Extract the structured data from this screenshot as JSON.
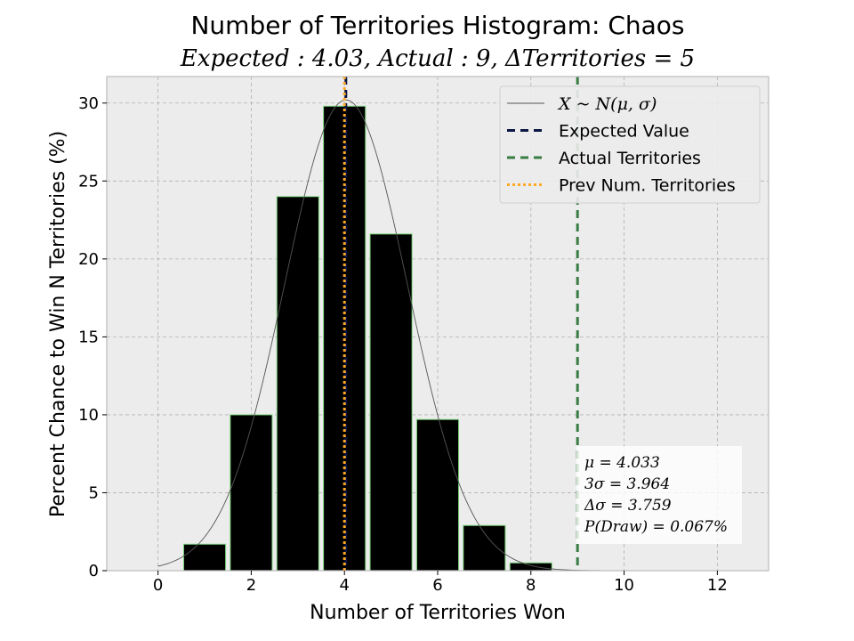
{
  "chart_data": {
    "type": "bar",
    "title": "Number of Territories Histogram: Chaos",
    "subtitle": "Expected : 4.03, Actual : 9, ΔTerritories = 5",
    "xlabel": "Number of Territories Won",
    "ylabel": "Percent Chance to Win N Territories (%)",
    "xlim": [
      -1.1,
      13.1
    ],
    "ylim": [
      0,
      31.7
    ],
    "xticks": [
      0,
      2,
      4,
      6,
      8,
      10,
      12
    ],
    "yticks": [
      0,
      5,
      10,
      15,
      20,
      25,
      30
    ],
    "grid": true,
    "bars": [
      {
        "x": 1,
        "value": 1.7
      },
      {
        "x": 2,
        "value": 10.0
      },
      {
        "x": 3,
        "value": 24.0
      },
      {
        "x": 4,
        "value": 29.8
      },
      {
        "x": 5,
        "value": 21.6
      },
      {
        "x": 6,
        "value": 9.7
      },
      {
        "x": 7,
        "value": 2.9
      },
      {
        "x": 8,
        "value": 0.5
      }
    ],
    "bar_width": 0.9,
    "bar_color": "#000000",
    "bar_edge_color": "#7fd87f",
    "normal_curve": {
      "mu": 4.033,
      "sigma": 1.321,
      "peak": 30.2,
      "x_range": [
        0,
        12.5
      ],
      "color": "#555555"
    },
    "vlines": [
      {
        "name": "Expected Value",
        "x": 4.03,
        "color": "#0b1642",
        "style": "dashed"
      },
      {
        "name": "Actual Territories",
        "x": 9,
        "color": "#3a7d44",
        "style": "dashed"
      },
      {
        "name": "Prev Num. Territories",
        "x": 4,
        "color": "#ffa726",
        "style": "dotted"
      }
    ],
    "legend": {
      "position": "upper-right",
      "entries": [
        {
          "label": "X ~ N(μ, σ)",
          "style": "solid-thin",
          "color": "#555555"
        },
        {
          "label": "Expected Value",
          "style": "dashed",
          "color": "#0b1642"
        },
        {
          "label": "Actual Territories",
          "style": "dashed",
          "color": "#3a7d44"
        },
        {
          "label": "Prev Num. Territories",
          "style": "dotted",
          "color": "#ffa726"
        }
      ]
    },
    "stats_box": {
      "position": "lower-right",
      "lines": [
        "μ = 4.033",
        "3σ = 3.964",
        "Δσ = 3.759",
        "P(Draw) = 0.067%"
      ]
    },
    "colors": {
      "plot_bg": "#ececec",
      "grid": "#b0b0b0"
    }
  }
}
